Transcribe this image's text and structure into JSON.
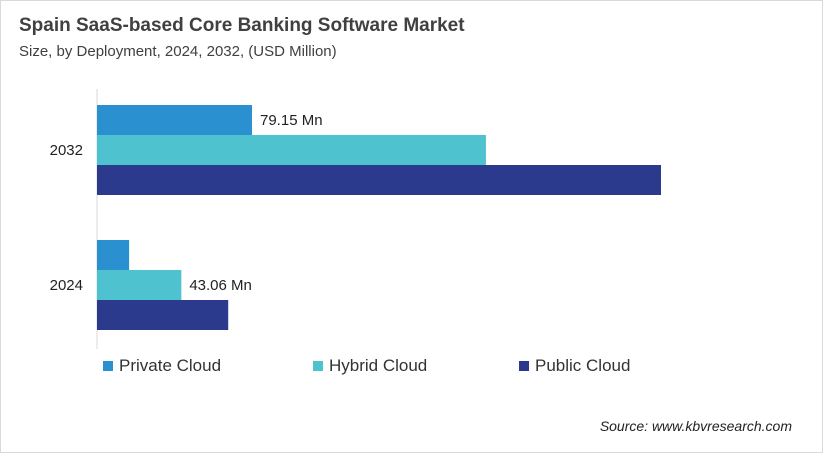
{
  "title": "Spain SaaS-based Core Banking Software Market",
  "subtitle": "Size, by Deployment, 2024, 2032, (USD Million)",
  "source": "Source: www.kbvresearch.com",
  "chart_data": {
    "type": "bar",
    "orientation": "horizontal",
    "categories": [
      "2032",
      "2024"
    ],
    "series": [
      {
        "name": "Private Cloud",
        "color": "#2a90cf",
        "values": [
          79.15,
          16.4
        ],
        "data_labels": [
          "79.15 Mn",
          null
        ]
      },
      {
        "name": "Hybrid Cloud",
        "color": "#4ec3cf",
        "values": [
          198.6,
          43.06
        ],
        "data_labels": [
          null,
          "43.06 Mn"
        ]
      },
      {
        "name": "Public Cloud",
        "color": "#2b3a8c",
        "values": [
          288.0,
          67.0
        ],
        "data_labels": [
          null,
          null
        ]
      }
    ],
    "xlim": [
      0,
      300
    ],
    "grid": false,
    "legend": "bottom"
  }
}
